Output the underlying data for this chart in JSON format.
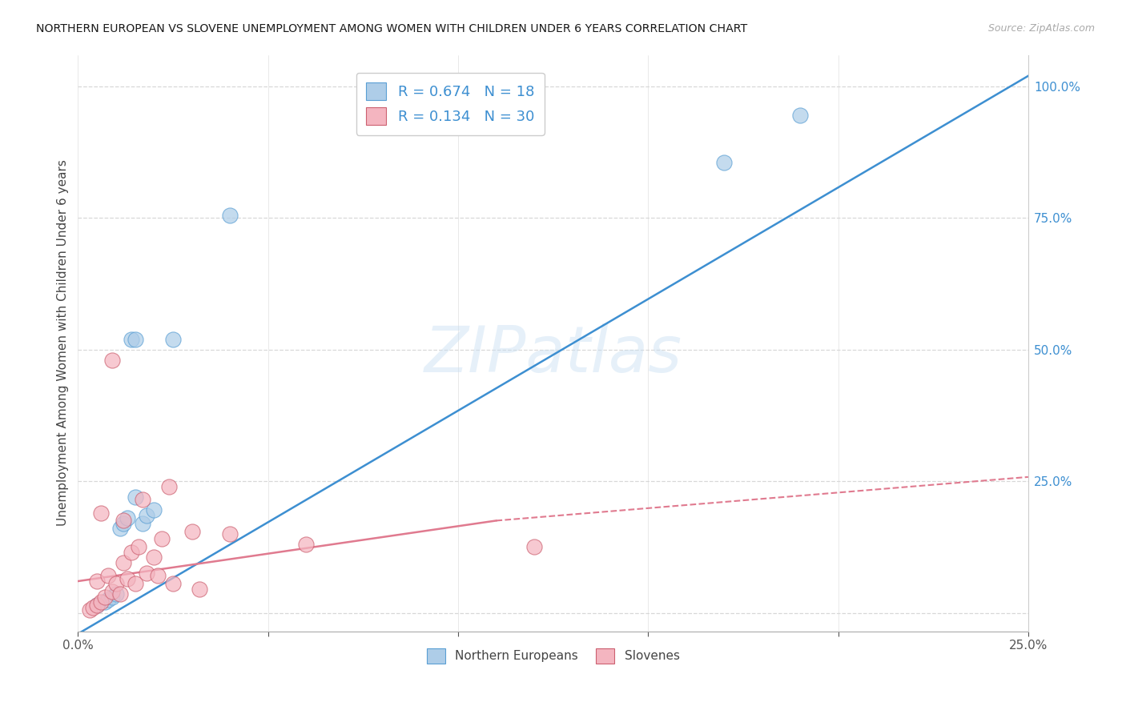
{
  "title": "NORTHERN EUROPEAN VS SLOVENE UNEMPLOYMENT AMONG WOMEN WITH CHILDREN UNDER 6 YEARS CORRELATION CHART",
  "source": "Source: ZipAtlas.com",
  "ylabel": "Unemployment Among Women with Children Under 6 years",
  "watermark": "ZIPatlas",
  "blue_R": "0.674",
  "blue_N": "18",
  "pink_R": "0.134",
  "pink_N": "30",
  "blue_color": "#aecde8",
  "pink_color": "#f4b5c0",
  "trend_blue_color": "#3d8fd1",
  "trend_pink_solid_color": "#e07a8f",
  "trend_pink_dashed_color": "#e07a8f",
  "blue_edge_color": "#5a9fd4",
  "pink_edge_color": "#cc6070",
  "blue_scatter_x": [
    0.005,
    0.007,
    0.008,
    0.009,
    0.01,
    0.011,
    0.012,
    0.013,
    0.014,
    0.015,
    0.015,
    0.017,
    0.018,
    0.02,
    0.025,
    0.04,
    0.17,
    0.19
  ],
  "blue_scatter_y": [
    0.015,
    0.02,
    0.025,
    0.03,
    0.035,
    0.16,
    0.17,
    0.18,
    0.52,
    0.22,
    0.52,
    0.17,
    0.185,
    0.195,
    0.52,
    0.755,
    0.855,
    0.945
  ],
  "pink_scatter_x": [
    0.003,
    0.004,
    0.005,
    0.005,
    0.006,
    0.006,
    0.007,
    0.008,
    0.009,
    0.009,
    0.01,
    0.011,
    0.012,
    0.012,
    0.013,
    0.014,
    0.015,
    0.016,
    0.017,
    0.018,
    0.02,
    0.021,
    0.022,
    0.024,
    0.025,
    0.03,
    0.032,
    0.04,
    0.06,
    0.12
  ],
  "pink_scatter_y": [
    0.005,
    0.01,
    0.015,
    0.06,
    0.02,
    0.19,
    0.03,
    0.07,
    0.04,
    0.48,
    0.055,
    0.035,
    0.095,
    0.175,
    0.065,
    0.115,
    0.055,
    0.125,
    0.215,
    0.075,
    0.105,
    0.07,
    0.14,
    0.24,
    0.055,
    0.155,
    0.045,
    0.15,
    0.13,
    0.125
  ],
  "blue_line_x0": 0.0,
  "blue_line_x1": 0.25,
  "blue_line_y0": -0.04,
  "blue_line_y1": 1.02,
  "pink_line_solid_x0": 0.0,
  "pink_line_solid_x1": 0.11,
  "pink_line_solid_y0": 0.06,
  "pink_line_solid_y1": 0.175,
  "pink_line_dashed_x0": 0.11,
  "pink_line_dashed_x1": 0.25,
  "pink_line_dashed_y0": 0.175,
  "pink_line_dashed_y1": 0.258,
  "legend_label_blue": "Northern Europeans",
  "legend_label_pink": "Slovenes",
  "xlim_min": 0.0,
  "xlim_max": 0.25,
  "ylim_min": -0.035,
  "ylim_max": 1.06,
  "right_ytick_vals": [
    0.0,
    0.25,
    0.5,
    0.75,
    1.0
  ],
  "right_ytick_labels": [
    "",
    "25.0%",
    "50.0%",
    "75.0%",
    "100.0%"
  ],
  "background_color": "#ffffff",
  "grid_color": "#d8d8d8",
  "axis_label_color": "#444444",
  "tick_color": "#555555",
  "legend_text_color": "#3d8fd1"
}
